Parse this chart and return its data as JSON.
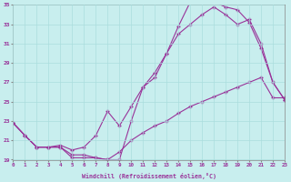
{
  "xlabel": "Windchill (Refroidissement éolien,°C)",
  "bg_color": "#c8eeee",
  "line_color": "#993399",
  "grid_color": "#aadddd",
  "xmin": 0,
  "xmax": 23,
  "ymin": 19,
  "ymax": 35,
  "yticks": [
    19,
    21,
    23,
    25,
    27,
    29,
    31,
    33,
    35
  ],
  "line1_x": [
    0,
    1,
    2,
    3,
    4,
    5,
    6,
    7,
    8,
    9,
    10,
    11,
    12,
    13,
    14,
    15,
    16,
    17,
    18,
    19,
    20,
    21,
    22,
    23
  ],
  "line1_y": [
    22.8,
    21.5,
    20.3,
    20.3,
    20.3,
    19.2,
    19.2,
    19.2,
    19.0,
    19.0,
    23.0,
    26.5,
    27.5,
    30.0,
    32.8,
    35.3,
    35.5,
    35.3,
    34.8,
    34.5,
    33.2,
    30.5,
    27.0,
    25.2
  ],
  "line2_x": [
    0,
    1,
    2,
    3,
    4,
    5,
    6,
    7,
    8,
    9,
    10,
    11,
    12,
    13,
    14,
    15,
    16,
    17,
    18,
    19,
    20,
    21,
    22,
    23
  ],
  "line2_y": [
    22.8,
    21.5,
    20.3,
    20.3,
    20.5,
    20.0,
    20.3,
    21.5,
    24.0,
    22.5,
    24.5,
    26.5,
    28.0,
    30.0,
    32.0,
    33.0,
    34.0,
    34.8,
    34.0,
    33.0,
    33.5,
    31.0,
    27.0,
    25.2
  ],
  "line3_x": [
    0,
    1,
    2,
    3,
    4,
    5,
    6,
    7,
    8,
    9,
    10,
    11,
    12,
    13,
    14,
    15,
    16,
    17,
    18,
    19,
    20,
    21,
    22,
    23
  ],
  "line3_y": [
    22.8,
    21.5,
    20.3,
    20.3,
    20.3,
    19.5,
    19.5,
    19.2,
    19.0,
    19.8,
    21.0,
    21.8,
    22.5,
    23.0,
    23.8,
    24.5,
    25.0,
    25.5,
    26.0,
    26.5,
    27.0,
    27.5,
    25.4,
    25.4
  ]
}
